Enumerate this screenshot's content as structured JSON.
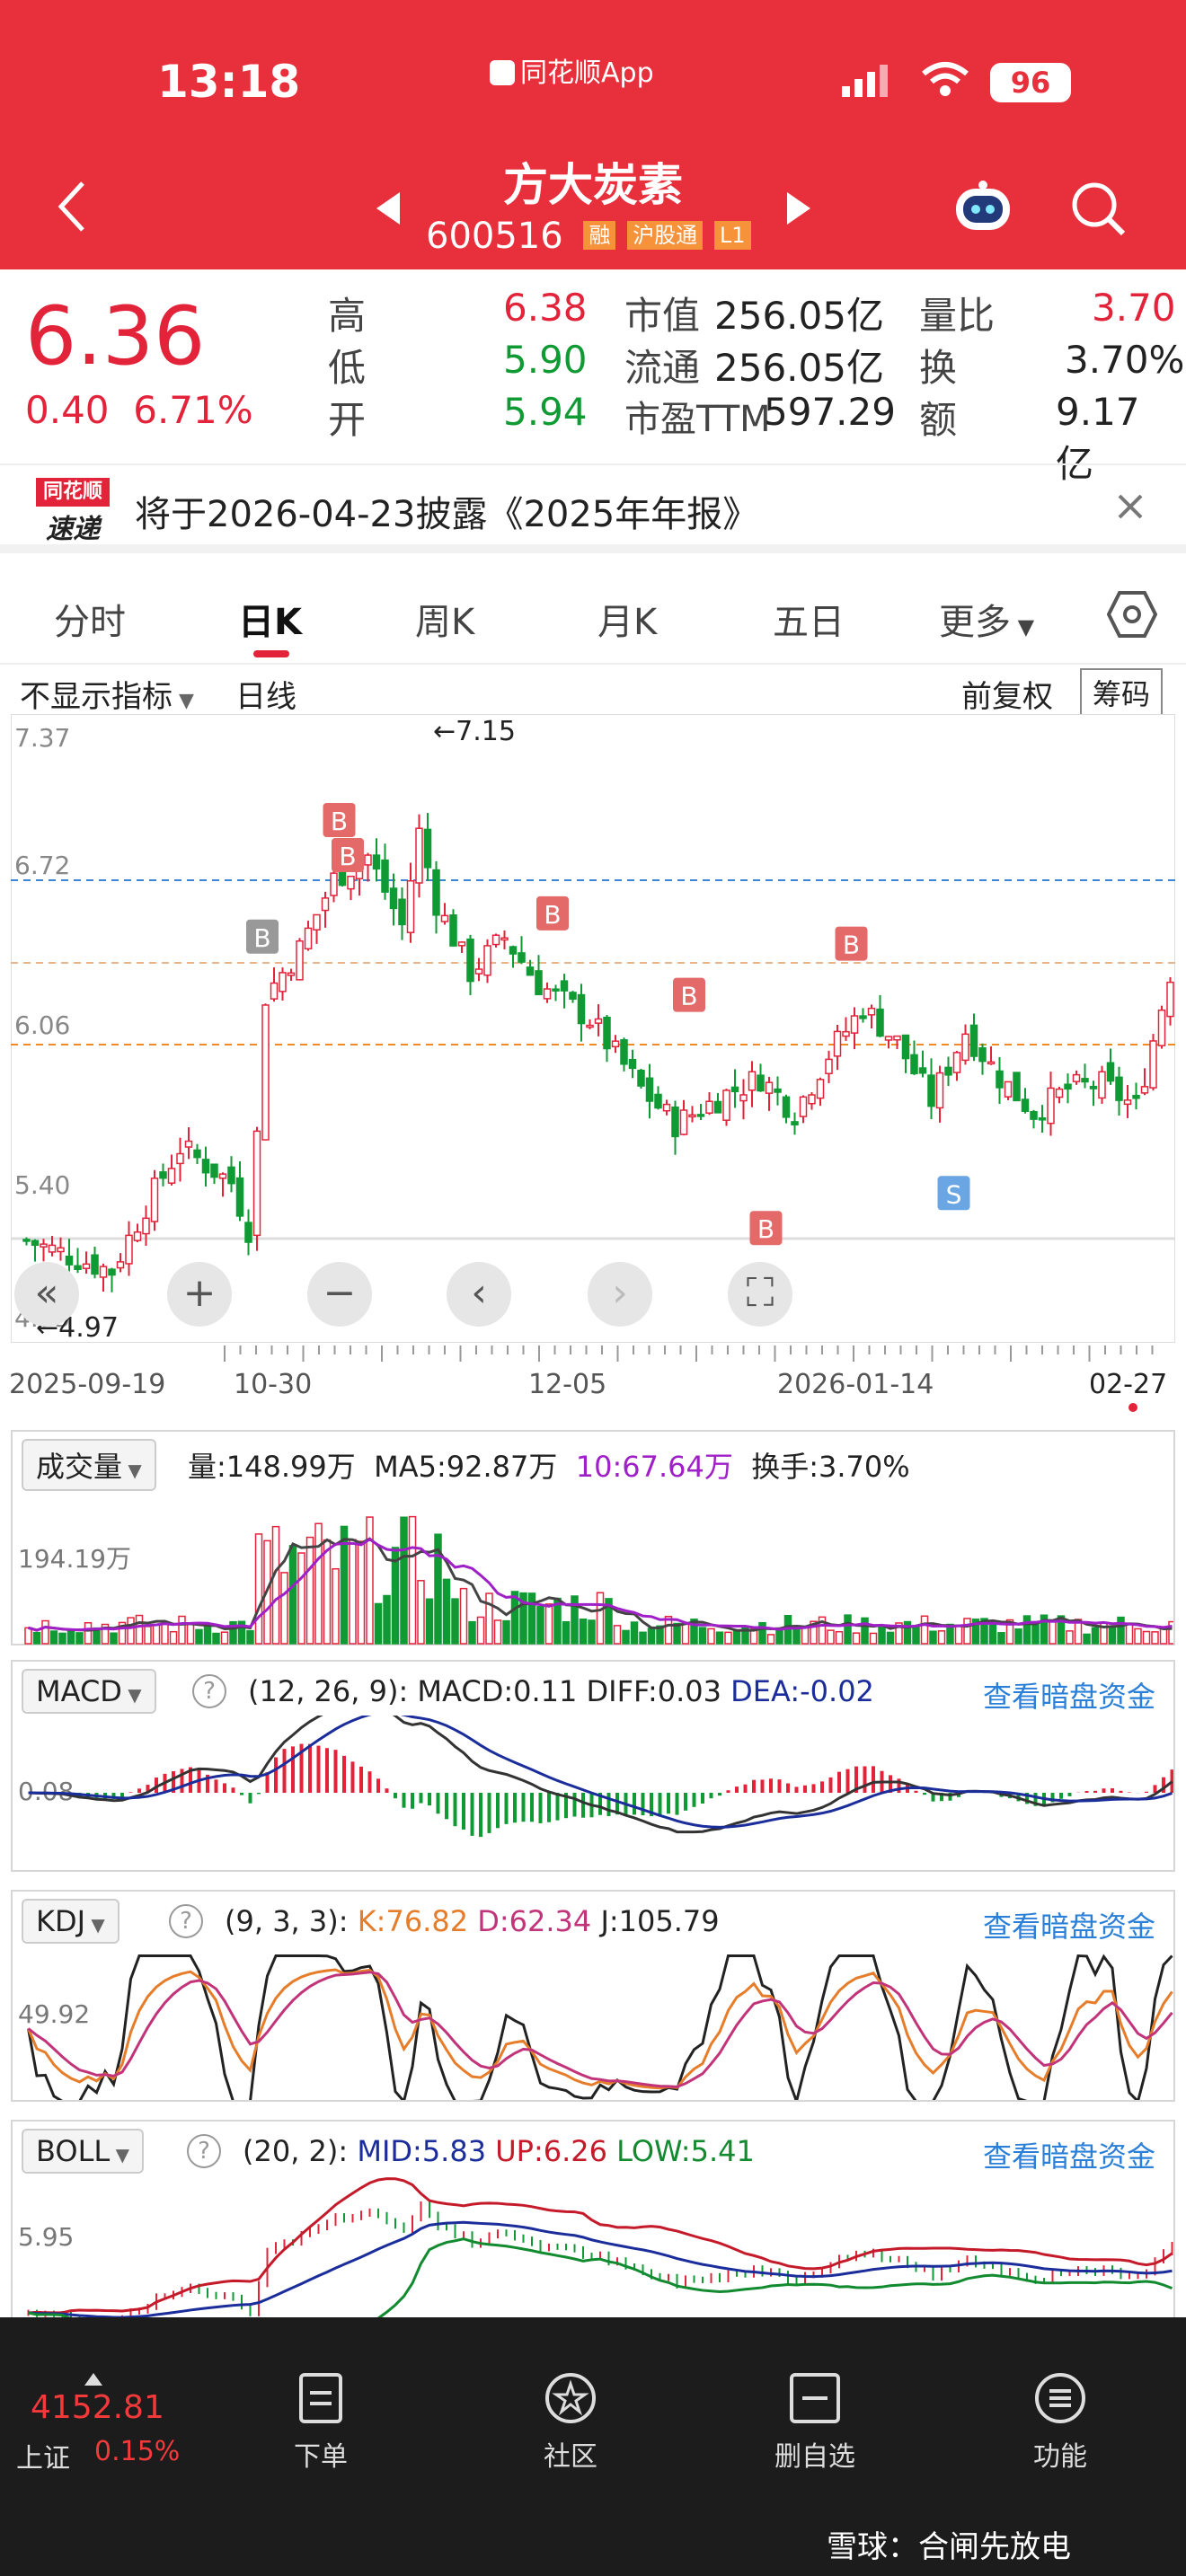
{
  "status_bar": {
    "time": "13:18",
    "app_label": "同花顺App",
    "battery": "96"
  },
  "header": {
    "title": "方大炭素",
    "code": "600516",
    "tags": [
      "融",
      "沪股通",
      "L1"
    ]
  },
  "quote": {
    "price": "6.36",
    "change": "0.40",
    "change_pct": "6.71%",
    "high_label": "高",
    "high": "6.38",
    "low_label": "低",
    "low": "5.90",
    "open_label": "开",
    "open": "5.94",
    "mcap_label": "市值",
    "mcap": "256.05亿",
    "float_label": "流通",
    "float": "256.05亿",
    "pe_label": "市盈TTM",
    "pe": "597.29",
    "vr_label": "量比",
    "vr": "3.70",
    "turnover_label": "换",
    "turnover": "3.70%",
    "amount_label": "额",
    "amount": "9.17亿"
  },
  "news": {
    "logo_top": "同花顺",
    "logo_bottom": "速递",
    "text": "将于2026-04-23披露《2025年年报》"
  },
  "tabs": [
    "分时",
    "日K",
    "周K",
    "月K",
    "五日",
    "更多"
  ],
  "chart_toolbar": {
    "indicator": "不显示指标",
    "period": "日线",
    "adjust": "前复权",
    "chips": "筹码"
  },
  "kline": {
    "y_ticks": [
      "7.37",
      "6.72",
      "6.06",
      "5.40",
      "4.75"
    ],
    "max_label": "←7.15",
    "min_label": "←4.97",
    "x_ticks": [
      "2025-09-19",
      "10-30",
      "12-05",
      "2026-01-14",
      "02-27"
    ],
    "signals": [
      "B",
      "B",
      "B",
      "B",
      "B",
      "B",
      "B",
      "S"
    ]
  },
  "volume": {
    "title": "成交量",
    "vol": "量:148.99万",
    "ma5": "MA5:92.87万",
    "ma10": "10:67.64万",
    "turnover": "换手:3.70%",
    "y_tick": "194.19万"
  },
  "macd": {
    "title": "MACD",
    "params": "(12, 26, 9):",
    "macd": "MACD:0.11",
    "diff": "DIFF:0.03",
    "dea": "DEA:-0.02",
    "link": "查看暗盘资金",
    "y_tick": "0.08"
  },
  "kdj": {
    "title": "KDJ",
    "params": "(9, 3, 3):",
    "k": "K:76.82",
    "d": "D:62.34",
    "j": "J:105.79",
    "link": "查看暗盘资金",
    "y_tick": "49.92"
  },
  "boll": {
    "title": "BOLL",
    "params": "(20, 2):",
    "mid": "MID:5.83",
    "up": "UP:6.26",
    "low": "LOW:5.41",
    "link": "查看暗盘资金",
    "y_tick": "5.95"
  },
  "footer": {
    "index_value": "4152.81",
    "index_name": "上证",
    "index_pct": "0.15%",
    "items": [
      "下单",
      "社区",
      "删自选",
      "功能"
    ],
    "watermark": "雪球：合闸先放电"
  },
  "colors": {
    "header_red": "#e8303c",
    "up": "#e2233a",
    "down": "#0f9a34"
  },
  "chart_data": {
    "type": "candlestick",
    "price_range": [
      4.75,
      7.37
    ],
    "high_marker": 7.15,
    "low_marker": 4.97,
    "dates_shown": [
      "2025-09-19",
      "10-30",
      "12-05",
      "2026-01-14",
      "02-27"
    ],
    "last_close": 6.36
  }
}
